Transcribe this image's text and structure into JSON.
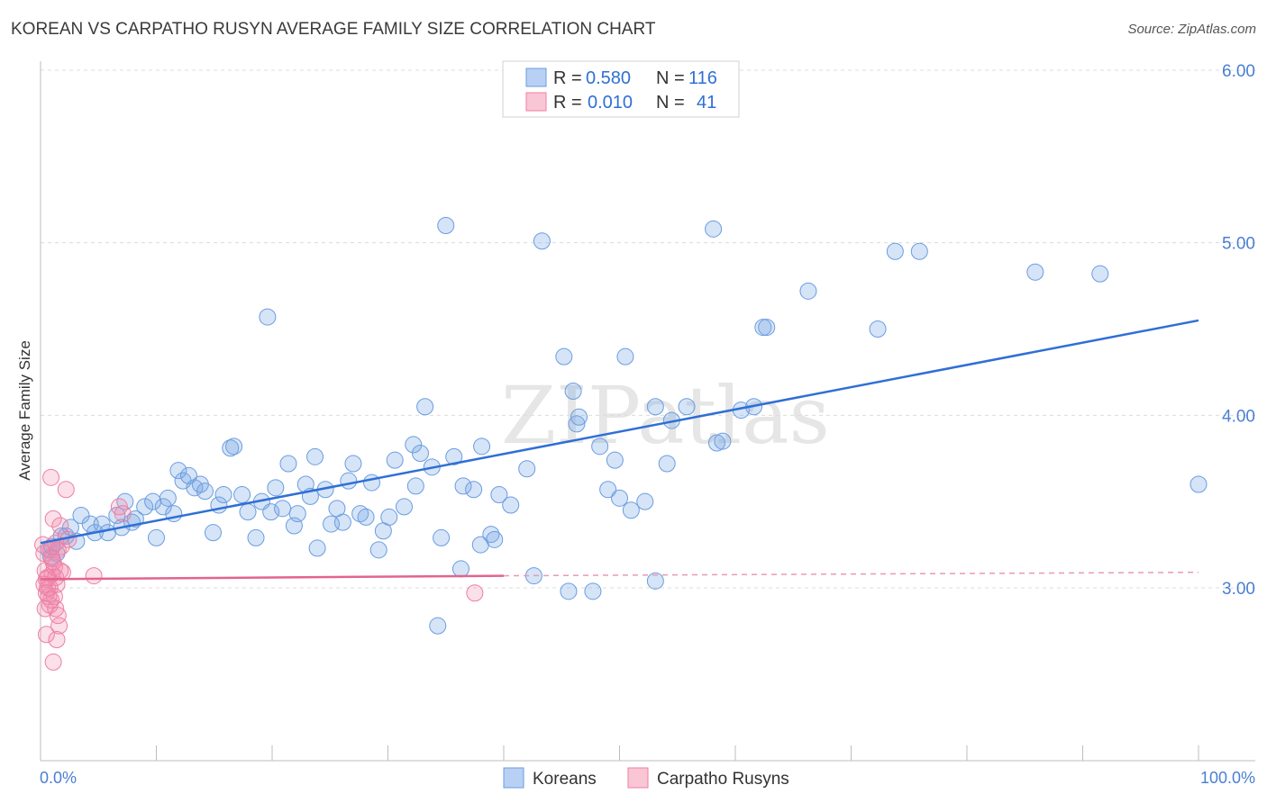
{
  "title": "KOREAN VS CARPATHO RUSYN AVERAGE FAMILY SIZE CORRELATION CHART",
  "source": "Source: ZipAtlas.com",
  "watermark": "ZIPatlas",
  "colors": {
    "korean": "#6a9de0",
    "rusyn": "#ee7fa2",
    "korean_line": "#2f6fd6",
    "rusyn_line": "#e3648e",
    "tick": "#4a7fd4"
  },
  "chart_data": {
    "type": "scatter",
    "title": "KOREAN VS CARPATHO RUSYN AVERAGE FAMILY SIZE CORRELATION CHART",
    "xlabel": "",
    "ylabel": "Average Family Size",
    "xlim": [
      0,
      100
    ],
    "ylim": [
      2.0,
      6.1
    ],
    "x_tick_labels": [
      "0.0%",
      "100.0%"
    ],
    "y_ticks": [
      3.0,
      4.0,
      5.0,
      6.0
    ],
    "y_tick_labels": [
      "3.00",
      "4.00",
      "5.00",
      "6.00"
    ],
    "legend": [
      {
        "name": "Koreans",
        "r_label": "R =",
        "r": "0.580",
        "n_label": "N =",
        "n": "116"
      },
      {
        "name": "Carpatho Rusyns",
        "r_label": "R =",
        "r": "0.010",
        "n_label": "N =",
        "n": "41"
      }
    ],
    "series": [
      {
        "name": "Koreans",
        "trend": {
          "x": [
            0,
            100
          ],
          "y": [
            3.26,
            4.55
          ]
        },
        "points": [
          [
            0.7,
            3.22
          ],
          [
            0.9,
            3.18
          ],
          [
            1.0,
            3.24
          ],
          [
            1.4,
            3.2
          ],
          [
            1.8,
            3.3
          ],
          [
            2.2,
            3.3
          ],
          [
            2.6,
            3.35
          ],
          [
            3.1,
            3.27
          ],
          [
            3.5,
            3.42
          ],
          [
            4.3,
            3.37
          ],
          [
            4.7,
            3.32
          ],
          [
            5.3,
            3.37
          ],
          [
            5.8,
            3.32
          ],
          [
            6.6,
            3.42
          ],
          [
            7.0,
            3.35
          ],
          [
            7.3,
            3.5
          ],
          [
            7.9,
            3.38
          ],
          [
            8.2,
            3.4
          ],
          [
            9.0,
            3.47
          ],
          [
            9.7,
            3.5
          ],
          [
            10.0,
            3.29
          ],
          [
            10.6,
            3.47
          ],
          [
            11.0,
            3.52
          ],
          [
            11.5,
            3.43
          ],
          [
            11.9,
            3.68
          ],
          [
            12.3,
            3.62
          ],
          [
            12.8,
            3.65
          ],
          [
            13.3,
            3.58
          ],
          [
            13.8,
            3.6
          ],
          [
            14.2,
            3.56
          ],
          [
            14.9,
            3.32
          ],
          [
            15.4,
            3.48
          ],
          [
            15.8,
            3.54
          ],
          [
            16.4,
            3.81
          ],
          [
            16.7,
            3.82
          ],
          [
            17.4,
            3.54
          ],
          [
            17.9,
            3.44
          ],
          [
            18.6,
            3.29
          ],
          [
            19.1,
            3.5
          ],
          [
            19.6,
            4.57
          ],
          [
            19.9,
            3.44
          ],
          [
            20.3,
            3.58
          ],
          [
            20.9,
            3.46
          ],
          [
            21.4,
            3.72
          ],
          [
            21.9,
            3.36
          ],
          [
            22.2,
            3.43
          ],
          [
            22.9,
            3.6
          ],
          [
            23.3,
            3.53
          ],
          [
            23.7,
            3.76
          ],
          [
            23.9,
            3.23
          ],
          [
            24.6,
            3.57
          ],
          [
            25.1,
            3.37
          ],
          [
            25.6,
            3.46
          ],
          [
            26.1,
            3.38
          ],
          [
            26.6,
            3.62
          ],
          [
            27.0,
            3.72
          ],
          [
            27.6,
            3.43
          ],
          [
            28.1,
            3.41
          ],
          [
            28.6,
            3.61
          ],
          [
            29.2,
            3.22
          ],
          [
            29.6,
            3.33
          ],
          [
            30.1,
            3.41
          ],
          [
            30.6,
            3.74
          ],
          [
            31.4,
            3.47
          ],
          [
            32.2,
            3.83
          ],
          [
            32.4,
            3.59
          ],
          [
            32.8,
            3.78
          ],
          [
            33.2,
            4.05
          ],
          [
            33.8,
            3.7
          ],
          [
            34.3,
            2.78
          ],
          [
            34.6,
            3.29
          ],
          [
            35.0,
            5.1
          ],
          [
            35.7,
            3.76
          ],
          [
            36.3,
            3.11
          ],
          [
            36.5,
            3.59
          ],
          [
            37.4,
            3.57
          ],
          [
            38.0,
            3.25
          ],
          [
            38.1,
            3.82
          ],
          [
            38.9,
            3.31
          ],
          [
            39.2,
            3.28
          ],
          [
            39.6,
            3.54
          ],
          [
            40.6,
            3.48
          ],
          [
            42.0,
            3.69
          ],
          [
            42.6,
            3.07
          ],
          [
            43.3,
            5.01
          ],
          [
            45.2,
            4.34
          ],
          [
            45.6,
            2.98
          ],
          [
            46.0,
            4.14
          ],
          [
            46.3,
            3.95
          ],
          [
            46.5,
            3.99
          ],
          [
            47.7,
            2.98
          ],
          [
            48.3,
            3.82
          ],
          [
            49.0,
            3.57
          ],
          [
            49.6,
            3.74
          ],
          [
            50.0,
            3.52
          ],
          [
            50.5,
            4.34
          ],
          [
            51.0,
            3.45
          ],
          [
            52.2,
            3.5
          ],
          [
            53.1,
            3.04
          ],
          [
            53.1,
            4.05
          ],
          [
            54.1,
            3.72
          ],
          [
            54.5,
            3.97
          ],
          [
            55.8,
            4.05
          ],
          [
            58.1,
            5.08
          ],
          [
            58.4,
            3.84
          ],
          [
            58.9,
            3.85
          ],
          [
            60.5,
            4.03
          ],
          [
            61.6,
            4.05
          ],
          [
            62.4,
            4.51
          ],
          [
            62.7,
            4.51
          ],
          [
            66.3,
            4.72
          ],
          [
            72.3,
            4.5
          ],
          [
            73.8,
            4.95
          ],
          [
            75.9,
            4.95
          ],
          [
            85.9,
            4.83
          ],
          [
            91.5,
            4.82
          ],
          [
            100.0,
            3.6
          ]
        ]
      },
      {
        "name": "Carpatho Rusyns",
        "trend": {
          "x": [
            0,
            40
          ],
          "y": [
            3.05,
            3.07
          ]
        },
        "trend_dashed": {
          "x": [
            40,
            100
          ],
          "y": [
            3.07,
            3.09
          ]
        },
        "points": [
          [
            0.2,
            3.25
          ],
          [
            0.3,
            3.2
          ],
          [
            0.4,
            3.1
          ],
          [
            0.5,
            3.05
          ],
          [
            0.6,
            3.0
          ],
          [
            0.7,
            2.95
          ],
          [
            0.8,
            2.9
          ],
          [
            0.4,
            2.88
          ],
          [
            0.5,
            2.73
          ],
          [
            0.9,
            3.64
          ],
          [
            1.1,
            3.4
          ],
          [
            0.9,
            3.22
          ],
          [
            1.0,
            3.08
          ],
          [
            1.2,
            3.12
          ],
          [
            1.3,
            3.06
          ],
          [
            1.4,
            3.02
          ],
          [
            1.2,
            2.95
          ],
          [
            1.3,
            2.88
          ],
          [
            1.5,
            2.84
          ],
          [
            1.6,
            2.78
          ],
          [
            1.4,
            2.7
          ],
          [
            1.1,
            2.57
          ],
          [
            1.7,
            3.36
          ],
          [
            1.8,
            3.24
          ],
          [
            1.9,
            3.09
          ],
          [
            2.2,
            3.57
          ],
          [
            2.4,
            3.28
          ],
          [
            1.0,
            3.17
          ],
          [
            0.6,
            3.06
          ],
          [
            0.8,
            3.0
          ],
          [
            1.5,
            3.22
          ],
          [
            1.7,
            3.1
          ],
          [
            0.3,
            3.02
          ],
          [
            0.5,
            2.97
          ],
          [
            0.9,
            2.93
          ],
          [
            1.1,
            3.15
          ],
          [
            6.8,
            3.47
          ],
          [
            7.1,
            3.43
          ],
          [
            4.6,
            3.07
          ],
          [
            37.5,
            2.97
          ],
          [
            1.3,
            3.26
          ]
        ]
      }
    ]
  },
  "bottom_legend": [
    "Koreans",
    "Carpatho Rusyns"
  ]
}
